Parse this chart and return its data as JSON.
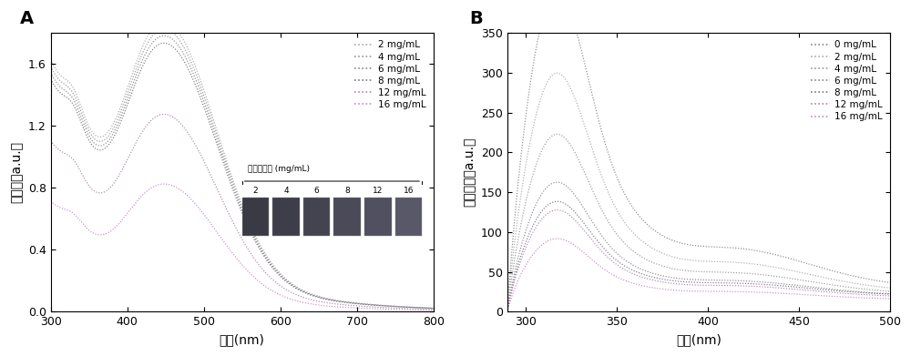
{
  "panel_A": {
    "title": "A",
    "xlabel": "波长(nm)",
    "ylabel": "吸光値（a.u.）",
    "xlim": [
      300,
      800
    ],
    "ylim": [
      0.0,
      1.8
    ],
    "yticks": [
      0.0,
      0.4,
      0.8,
      1.2,
      1.6
    ],
    "xticks": [
      300,
      400,
      500,
      600,
      700,
      800
    ],
    "legend_labels": [
      "2 mg/mL",
      "4 mg/mL",
      "6 mg/mL",
      "8 mg/mL",
      "12 mg/mL",
      "16 mg/mL"
    ],
    "inset_title": "确酸銀浓度 (mg/mL)",
    "inset_labels": [
      "2",
      "4",
      "6",
      "8",
      "12",
      "16"
    ],
    "scales": {
      "2": 1.0,
      "4": 0.975,
      "6": 0.95,
      "8": 0.925,
      "12": 0.68,
      "16": 0.44
    },
    "colors": {
      "2": "#aaaaaa",
      "4": "#999999",
      "6": "#888888",
      "8": "#777788",
      "12": "#aa88aa",
      "16": "#cc88cc"
    }
  },
  "panel_B": {
    "title": "B",
    "xlabel": "波长(nm)",
    "ylabel": "荧光强度（a.u.）",
    "xlim": [
      290,
      500
    ],
    "ylim": [
      0,
      350
    ],
    "yticks": [
      0,
      50,
      100,
      150,
      200,
      250,
      300,
      350
    ],
    "xticks": [
      300,
      350,
      400,
      450,
      500
    ],
    "legend_labels": [
      "0 mg/mL",
      "2 mg/mL",
      "4 mg/mL",
      "6 mg/mL",
      "8 mg/mL",
      "12 mg/mL",
      "16 mg/mL"
    ],
    "peak_heights": {
      "0": 338,
      "2": 250,
      "4": 183,
      "6": 130,
      "8": 108,
      "12": 100,
      "16": 70
    },
    "colors": {
      "0": "#888888",
      "2": "#aaaaaa",
      "4": "#999999",
      "6": "#888888",
      "8": "#777788",
      "12": "#aa88aa",
      "16": "#cc88cc"
    }
  }
}
